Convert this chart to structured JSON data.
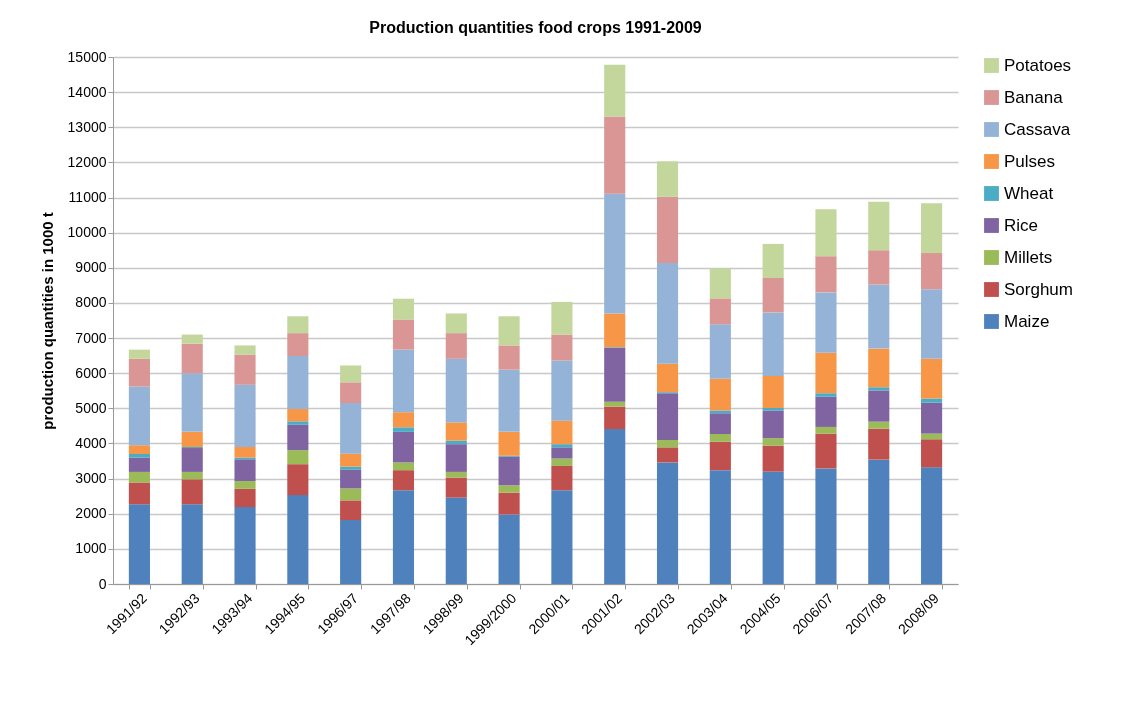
{
  "chart_data": {
    "type": "bar",
    "title": "Production quantities food crops 1991-2009",
    "ylabel": "production quantities in 1000 t",
    "categories": [
      "1991/92",
      "1992/93",
      "1993/94",
      "1994/95",
      "1996/97",
      "1997/98",
      "1998/99",
      "1999/2000",
      "2000/01",
      "2001/02",
      "2002/03",
      "2003/04",
      "2004/05",
      "2006/07",
      "2007/08",
      "2008/09"
    ],
    "stacked": true,
    "ylim": [
      0,
      15000
    ],
    "yticks": [
      0,
      1000,
      2000,
      3000,
      4000,
      5000,
      6000,
      7000,
      8000,
      9000,
      10000,
      11000,
      12000,
      13000,
      14000,
      15000
    ],
    "grid": "y",
    "legend": "right",
    "series": [
      {
        "name": "Maize",
        "color": "#4f81bd",
        "values": [
          2270,
          2270,
          2190,
          2530,
          1820,
          2670,
          2460,
          1980,
          2670,
          4410,
          3460,
          3240,
          3200,
          3290,
          3540,
          3320
        ]
      },
      {
        "name": "Sorghum",
        "color": "#c0504d",
        "values": [
          620,
          710,
          520,
          880,
          560,
          570,
          570,
          620,
          690,
          640,
          430,
          810,
          740,
          990,
          880,
          800
        ]
      },
      {
        "name": "Millets",
        "color": "#9bbb59",
        "values": [
          300,
          210,
          220,
          400,
          340,
          220,
          160,
          210,
          210,
          140,
          210,
          220,
          210,
          190,
          200,
          160
        ]
      },
      {
        "name": "Rice",
        "color": "#8064a2",
        "values": [
          410,
          680,
          620,
          720,
          530,
          870,
          790,
          810,
          320,
          1530,
          1330,
          590,
          790,
          860,
          890,
          880
        ]
      },
      {
        "name": "Wheat",
        "color": "#4bacc6",
        "values": [
          100,
          30,
          50,
          100,
          90,
          130,
          100,
          30,
          90,
          20,
          30,
          80,
          70,
          100,
          90,
          120
        ]
      },
      {
        "name": "Pulses",
        "color": "#f79646",
        "values": [
          250,
          430,
          300,
          350,
          370,
          430,
          520,
          680,
          670,
          960,
          810,
          900,
          910,
          1150,
          1100,
          1130
        ]
      },
      {
        "name": "Cassava",
        "color": "#95b3d7",
        "values": [
          1670,
          1670,
          1770,
          1510,
          1440,
          1780,
          1810,
          1770,
          1710,
          3410,
          2870,
          1550,
          1810,
          1720,
          1820,
          1980
        ]
      },
      {
        "name": "Banana",
        "color": "#d99694",
        "values": [
          790,
          840,
          860,
          650,
          590,
          860,
          730,
          690,
          740,
          2200,
          1880,
          740,
          980,
          1030,
          980,
          1030
        ]
      },
      {
        "name": "Potatoes",
        "color": "#c3d69b",
        "values": [
          260,
          260,
          260,
          480,
          480,
          590,
          560,
          830,
          930,
          1470,
          1010,
          850,
          970,
          1340,
          1380,
          1420
        ]
      }
    ]
  }
}
